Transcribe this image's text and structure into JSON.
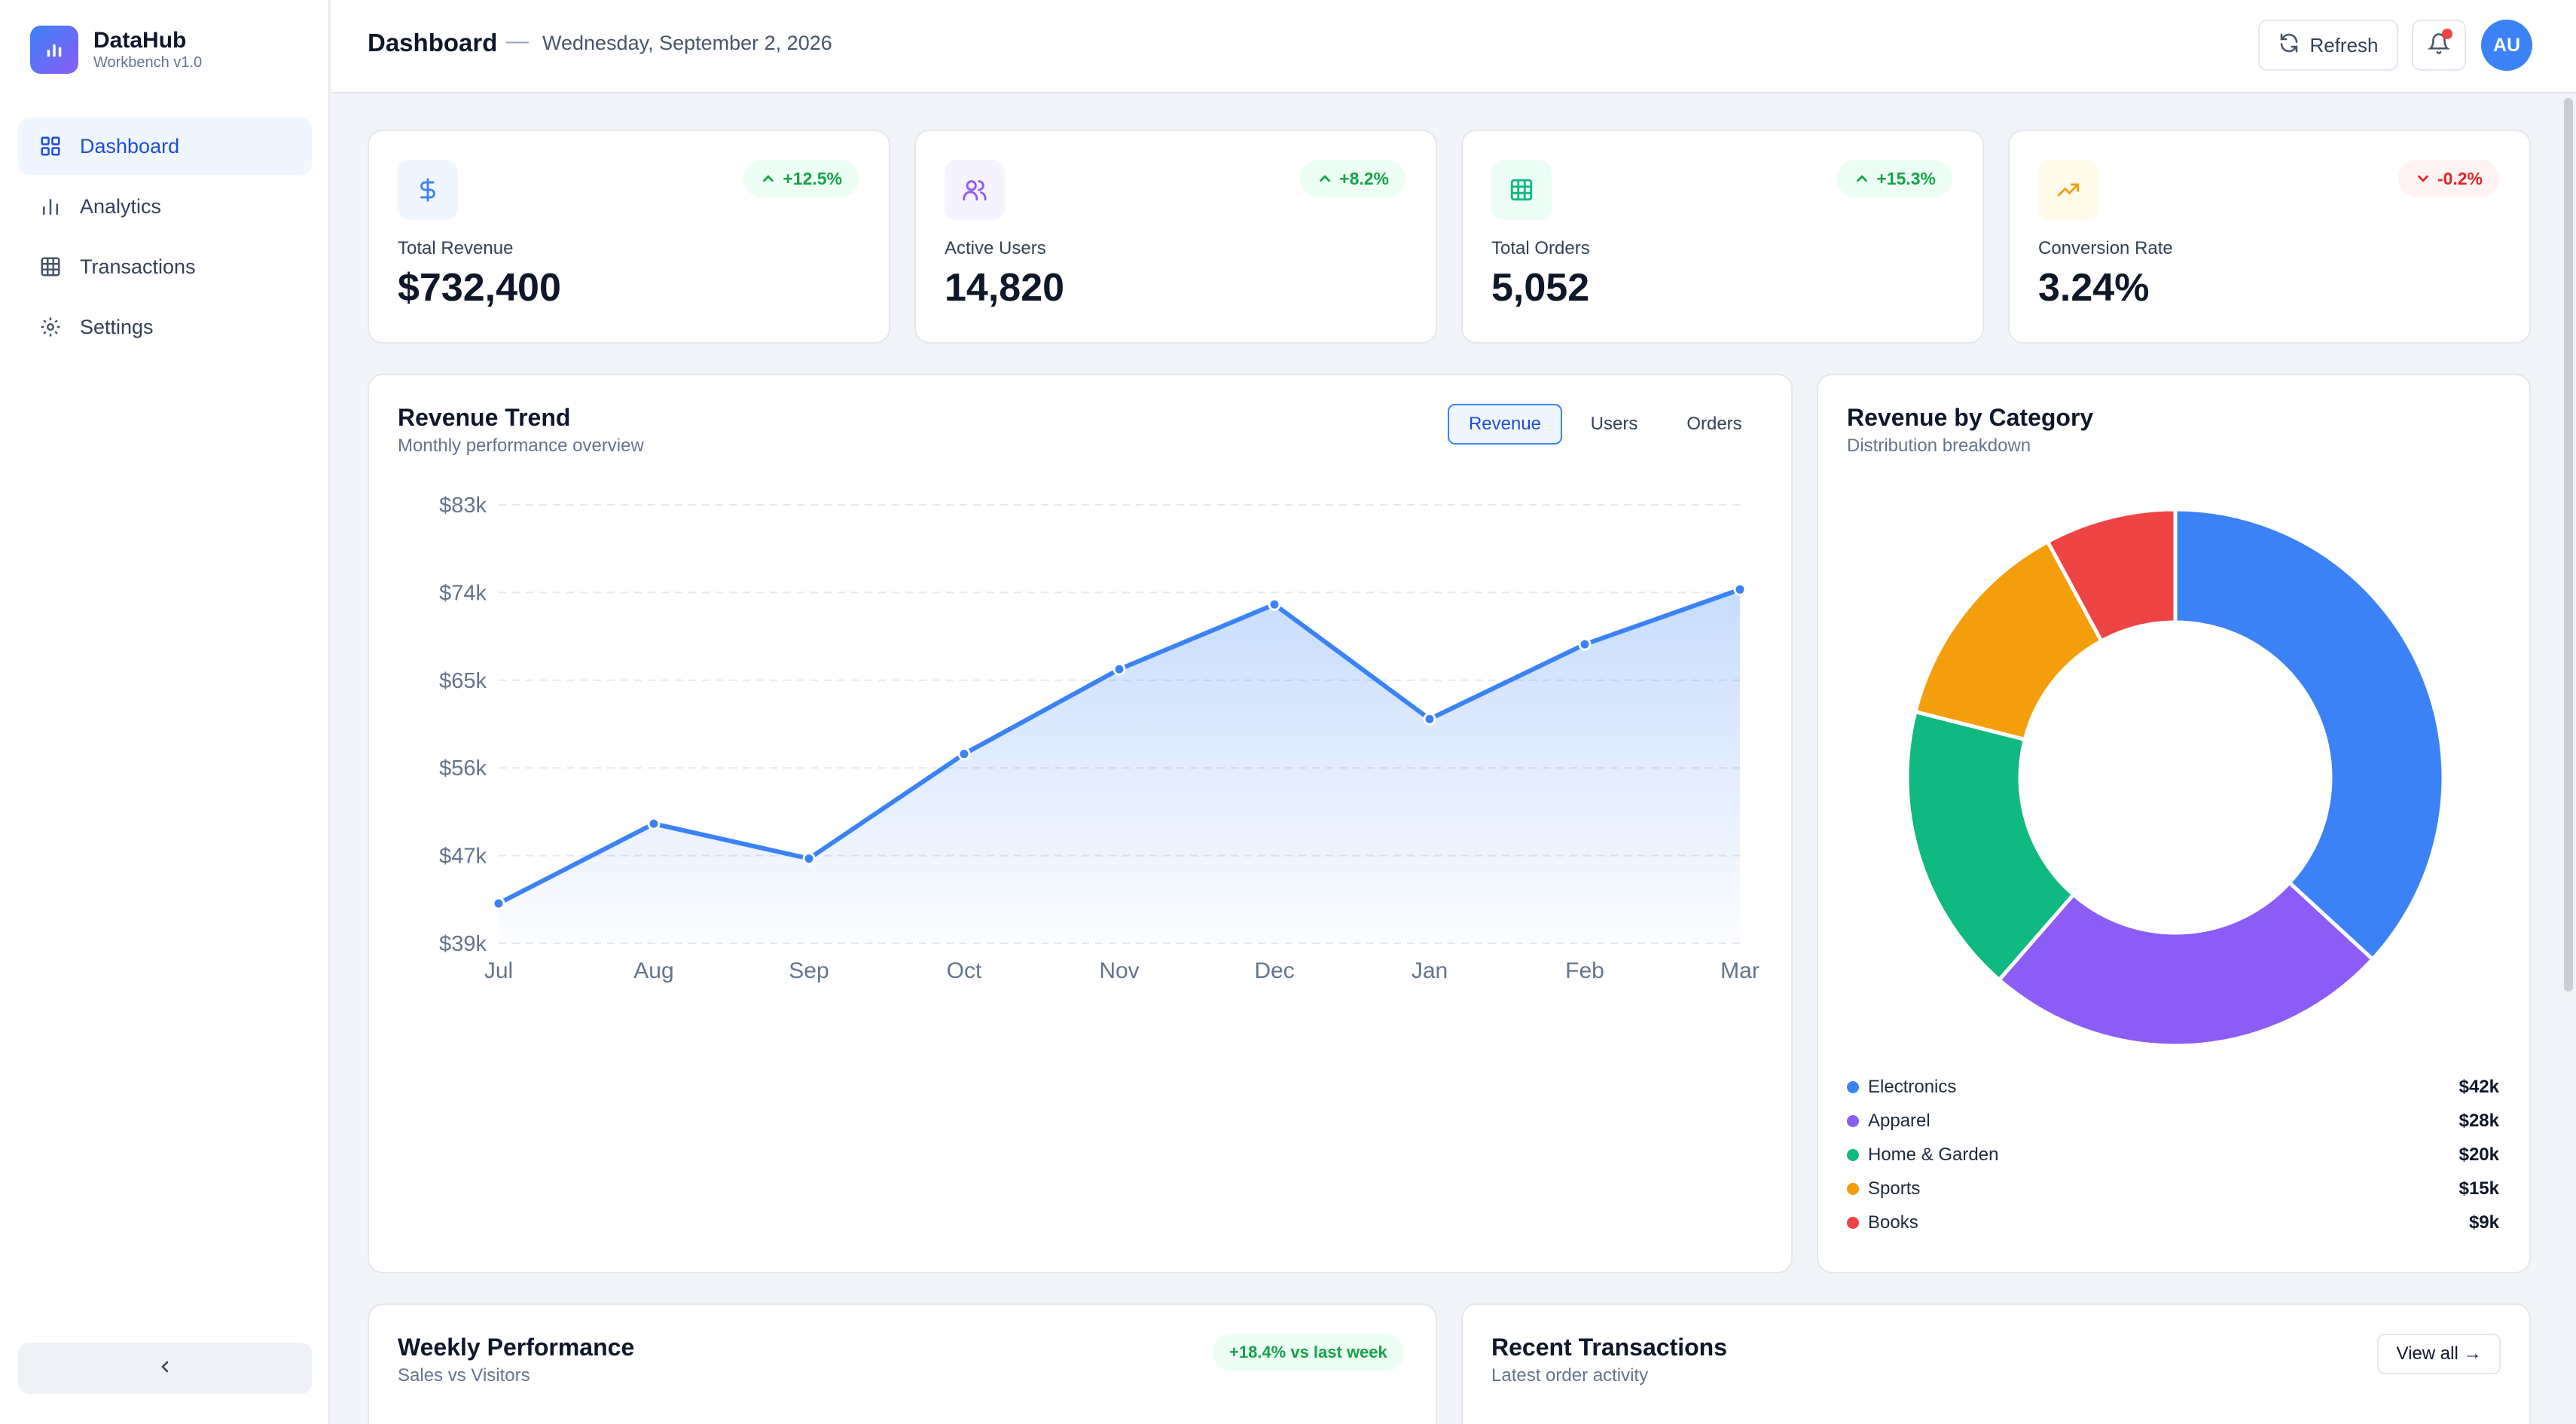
{
  "brand": {
    "name": "DataHub",
    "version": "Workbench v1.0"
  },
  "sidebar": {
    "items": [
      {
        "label": "Dashboard",
        "icon": "grid-icon",
        "active": true
      },
      {
        "label": "Analytics",
        "icon": "bar-chart-icon",
        "active": false
      },
      {
        "label": "Transactions",
        "icon": "table-icon",
        "active": false
      },
      {
        "label": "Settings",
        "icon": "gear-icon",
        "active": false
      }
    ],
    "collapse_icon": "chevron-left-icon"
  },
  "header": {
    "title": "Dashboard",
    "separator": "—",
    "date": "Wednesday, September 2, 2026",
    "refresh_label": "Refresh",
    "avatar_initials": "AU"
  },
  "stats": [
    {
      "label": "Total Revenue",
      "value": "$732,400",
      "change": "+12.5%",
      "trend": "up",
      "icon": "dollar-icon",
      "color": "#3b82f6"
    },
    {
      "label": "Active Users",
      "value": "14,820",
      "change": "+8.2%",
      "trend": "up",
      "icon": "users-icon",
      "color": "#8b5cf6"
    },
    {
      "label": "Total Orders",
      "value": "5,052",
      "change": "+15.3%",
      "trend": "up",
      "icon": "table-icon",
      "color": "#10b981"
    },
    {
      "label": "Conversion Rate",
      "value": "3.24%",
      "change": "-0.2%",
      "trend": "down",
      "icon": "trending-up-icon",
      "color": "#f59e0b"
    }
  ],
  "revenue_trend": {
    "title": "Revenue Trend",
    "subtitle": "Monthly performance overview",
    "tabs": [
      {
        "label": "Revenue",
        "active": true
      },
      {
        "label": "Users",
        "active": false
      },
      {
        "label": "Orders",
        "active": false
      }
    ]
  },
  "category": {
    "title": "Revenue by Category",
    "subtitle": "Distribution breakdown"
  },
  "weekly": {
    "title": "Weekly Performance",
    "subtitle": "Sales vs Visitors",
    "badge": "+18.4% vs last week"
  },
  "transactions": {
    "title": "Recent Transactions",
    "subtitle": "Latest order activity",
    "view_all": "View all →"
  },
  "chart_data": [
    {
      "type": "area",
      "title": "Revenue Trend",
      "x": [
        "Jul",
        "Aug",
        "Sep",
        "Oct",
        "Nov",
        "Dec",
        "Jan",
        "Feb",
        "Mar"
      ],
      "values": [
        43,
        51,
        47.5,
        58,
        66.5,
        73,
        61.5,
        69,
        74.5
      ],
      "yticks": [
        "$39k",
        "$47k",
        "$56k",
        "$65k",
        "$74k",
        "$83k"
      ],
      "ylim": [
        39,
        83
      ],
      "grid": true,
      "color": "#3b82f6"
    },
    {
      "type": "pie",
      "title": "Revenue by Category",
      "donut": true,
      "categories": [
        "Electronics",
        "Apparel",
        "Home & Garden",
        "Sports",
        "Books"
      ],
      "values": [
        42,
        28,
        20,
        15,
        9
      ],
      "value_labels": [
        "$42k",
        "$28k",
        "$20k",
        "$15k",
        "$9k"
      ],
      "colors": [
        "#3b82f6",
        "#8b5cf6",
        "#10b981",
        "#f59e0b",
        "#ef4444"
      ]
    }
  ]
}
